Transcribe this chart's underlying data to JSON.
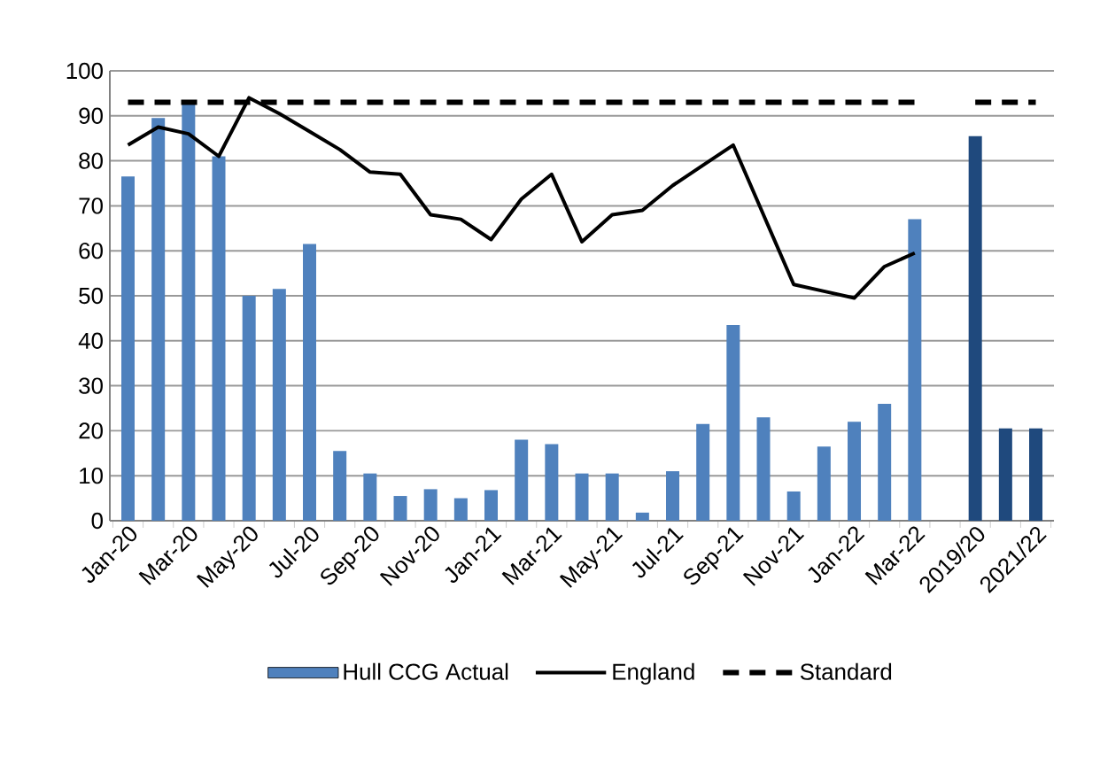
{
  "chart_data": {
    "type": "bar",
    "categories": [
      "Jan-20",
      null,
      "Mar-20",
      null,
      "May-20",
      null,
      "Jul-20",
      null,
      "Sep-20",
      null,
      "Nov-20",
      null,
      "Jan-21",
      null,
      "Mar-21",
      null,
      "May-21",
      null,
      "Jul-21",
      null,
      "Sep-21",
      null,
      "Nov-21",
      null,
      "Jan-22",
      null,
      "Mar-22",
      null,
      "2019/20",
      null,
      "2021/22"
    ],
    "series": [
      {
        "name": "Hull CCG Actual",
        "color": "#4f81bd",
        "values": [
          76.5,
          89.5,
          92.5,
          81,
          50,
          51.5,
          61.5,
          15.5,
          10.5,
          5.5,
          7,
          5,
          6.8,
          18,
          17,
          10.5,
          10.5,
          1.8,
          11,
          21.5,
          43.5,
          23,
          6.5,
          16.5,
          22,
          26,
          67,
          null,
          85.5,
          20.5,
          20.5
        ],
        "colors": [
          "#4f81bd",
          "#4f81bd",
          "#4f81bd",
          "#4f81bd",
          "#4f81bd",
          "#4f81bd",
          "#4f81bd",
          "#4f81bd",
          "#4f81bd",
          "#4f81bd",
          "#4f81bd",
          "#4f81bd",
          "#4f81bd",
          "#4f81bd",
          "#4f81bd",
          "#4f81bd",
          "#4f81bd",
          "#4f81bd",
          "#4f81bd",
          "#4f81bd",
          "#4f81bd",
          "#4f81bd",
          "#4f81bd",
          "#4f81bd",
          "#4f81bd",
          "#4f81bd",
          "#4f81bd",
          "#4f81bd",
          "#1f497d",
          "#1f497d",
          "#1f497d"
        ]
      },
      {
        "name": "England",
        "type": "line",
        "color": "#000000",
        "line_style": "solid",
        "values": [
          83.5,
          87.5,
          86,
          81,
          94,
          90.5,
          86.5,
          82.5,
          77.5,
          77,
          68,
          67,
          62.5,
          71.5,
          77,
          62,
          68,
          69,
          74.5,
          79,
          83.5,
          68,
          52.5,
          51,
          49.5,
          56.5,
          59.5,
          null,
          null,
          null,
          null
        ]
      },
      {
        "name": "Standard",
        "type": "line",
        "color": "#000000",
        "line_style": "dashed",
        "values": [
          93,
          93,
          93,
          93,
          93,
          93,
          93,
          93,
          93,
          93,
          93,
          93,
          93,
          93,
          93,
          93,
          93,
          93,
          93,
          93,
          93,
          93,
          93,
          93,
          93,
          93,
          93,
          null,
          93,
          93,
          93
        ]
      }
    ],
    "ylim": [
      0,
      100
    ],
    "yticks": [
      0,
      10,
      20,
      30,
      40,
      50,
      60,
      70,
      80,
      90,
      100
    ],
    "grid": "y",
    "legend": "bottom",
    "marker": "none"
  }
}
